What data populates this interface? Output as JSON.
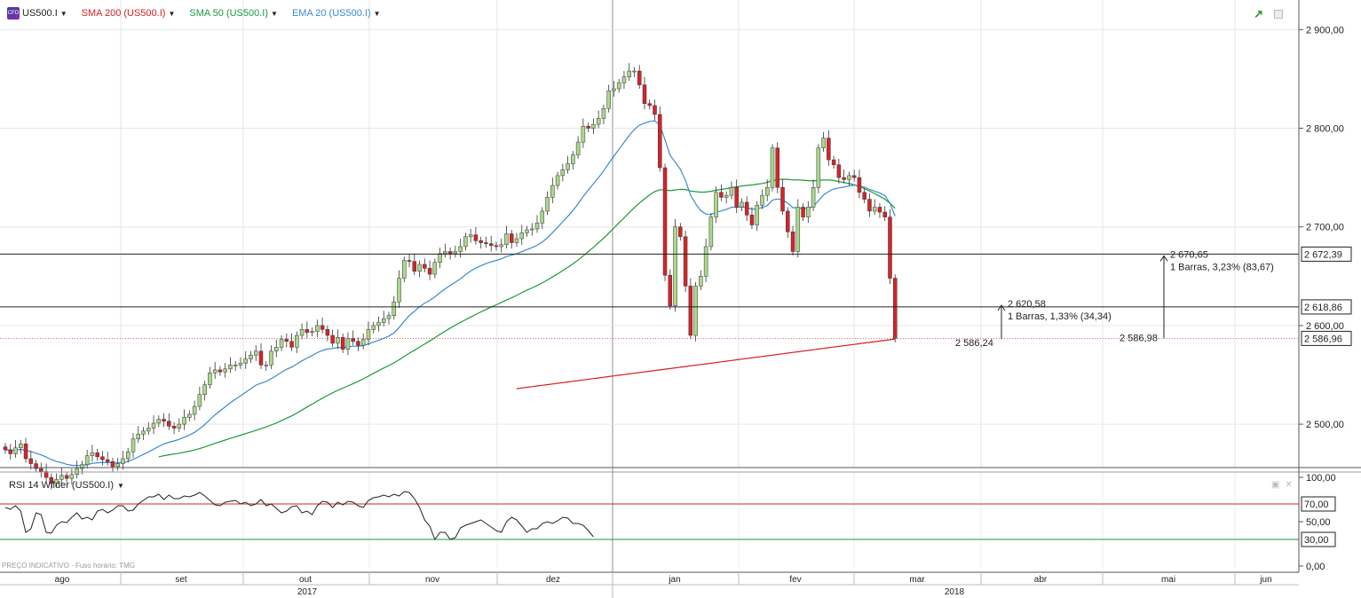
{
  "toolbar": {
    "symbol": "US500.I",
    "symbol_icon": "CFD",
    "indicators": [
      {
        "label": "SMA 200 (US500.I)",
        "color": "#d42020"
      },
      {
        "label": "SMA 50 (US500.I)",
        "color": "#1a9a3a"
      },
      {
        "label": "EMA 20 (US500.I)",
        "color": "#3a8ad0"
      }
    ]
  },
  "rsi": {
    "title": "RSI 14 Wilder (US500.I)",
    "overbought": 70,
    "oversold": 30,
    "overbought_label": "70,00",
    "oversold_label": "30,00",
    "axis_ticks": [
      "100,00",
      "50,00",
      "0,00"
    ],
    "values": [
      66,
      64,
      68,
      62,
      38,
      42,
      60,
      58,
      38,
      37,
      46,
      50,
      49,
      55,
      60,
      53,
      55,
      52,
      62,
      64,
      60,
      63,
      68,
      68,
      62,
      63,
      70,
      74,
      78,
      78,
      81,
      75,
      80,
      76,
      76,
      79,
      78,
      80,
      83,
      79,
      74,
      69,
      68,
      72,
      73,
      74,
      70,
      72,
      68,
      70,
      75,
      68,
      70,
      65,
      60,
      62,
      67,
      68,
      60,
      62,
      58,
      68,
      73,
      72,
      66,
      72,
      69,
      73,
      72,
      68,
      66,
      74,
      77,
      78,
      80,
      78,
      81,
      79,
      84,
      83,
      76,
      66,
      52,
      45,
      30,
      38,
      38,
      30,
      32,
      43,
      46,
      48,
      50,
      52,
      48,
      44,
      40,
      38,
      50,
      55,
      52,
      45,
      38,
      42,
      42,
      48,
      50,
      48,
      51,
      55,
      54,
      48,
      48,
      46,
      40,
      33
    ]
  },
  "footnote": "PREÇO INDICATIVO · Fuso horário: TMG",
  "chart_data": {
    "type": "candlestick",
    "symbol": "US500.I",
    "yticks": [
      "2 900,00",
      "2 800,00",
      "2 700,00",
      "2 600,00",
      "2 500,00"
    ],
    "ylim": [
      2456,
      2930
    ],
    "x_labels": [
      "ago",
      "set",
      "out",
      "nov",
      "dez",
      "jan",
      "fev",
      "mar",
      "abr",
      "mai",
      "jun"
    ],
    "year_labels": [
      "2017",
      "2018"
    ],
    "last_price": 2586.96,
    "closes": [
      2474,
      2470,
      2476,
      2480,
      2465,
      2460,
      2455,
      2452,
      2446,
      2440,
      2444,
      2448,
      2445,
      2449,
      2455,
      2459,
      2468,
      2471,
      2467,
      2464,
      2462,
      2457,
      2460,
      2465,
      2472,
      2485,
      2490,
      2493,
      2496,
      2501,
      2505,
      2503,
      2498,
      2496,
      2500,
      2507,
      2510,
      2518,
      2530,
      2540,
      2552,
      2555,
      2553,
      2556,
      2560,
      2560,
      2562,
      2566,
      2570,
      2574,
      2560,
      2560,
      2574,
      2578,
      2586,
      2584,
      2578,
      2590,
      2596,
      2593,
      2594,
      2600,
      2596,
      2590,
      2582,
      2588,
      2576,
      2587,
      2584,
      2580,
      2586,
      2596,
      2600,
      2603,
      2607,
      2610,
      2624,
      2648,
      2666,
      2665,
      2655,
      2662,
      2658,
      2652,
      2664,
      2673,
      2675,
      2673,
      2675,
      2680,
      2690,
      2692,
      2686,
      2684,
      2683,
      2681,
      2680,
      2682,
      2693,
      2684,
      2688,
      2694,
      2697,
      2698,
      2704,
      2716,
      2730,
      2742,
      2752,
      2758,
      2764,
      2773,
      2786,
      2802,
      2800,
      2804,
      2810,
      2820,
      2838,
      2840,
      2846,
      2852,
      2858,
      2858,
      2844,
      2825,
      2823,
      2814,
      2760,
      2651,
      2620,
      2700,
      2690,
      2640,
      2590,
      2640,
      2650,
      2680,
      2710,
      2735,
      2730,
      2732,
      2740,
      2720,
      2725,
      2712,
      2702,
      2722,
      2732,
      2740,
      2780,
      2740,
      2716,
      2695,
      2675,
      2720,
      2710,
      2720,
      2740,
      2780,
      2790,
      2768,
      2763,
      2750,
      2748,
      2752,
      2750,
      2735,
      2728,
      2716,
      2720,
      2715,
      2710,
      2648,
      2586.96
    ],
    "annotations": [
      {
        "type": "hline",
        "value": 2672.39,
        "label": "2 672,39"
      },
      {
        "type": "hline",
        "value": 2618.86,
        "label": "2 618,86"
      },
      {
        "type": "hline",
        "value": 2586.96,
        "label": "2 586,96",
        "style": "dotted"
      },
      {
        "type": "measure",
        "from": 2586.24,
        "to": 2620.58,
        "from_label": "2 586,24",
        "to_label": "2 620,58",
        "info": "1 Barras, 1,33% (34,34)"
      },
      {
        "type": "measure",
        "from": 2586.98,
        "to": 2670.65,
        "from_label": "2 586,98",
        "to_label": "2 670,65",
        "info": "1 Barras, 3,23% (83,67)"
      }
    ]
  }
}
